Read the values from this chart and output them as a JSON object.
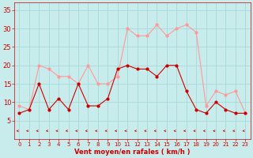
{
  "x": [
    0,
    1,
    2,
    3,
    4,
    5,
    6,
    7,
    8,
    9,
    10,
    11,
    12,
    13,
    14,
    15,
    16,
    17,
    18,
    19,
    20,
    21,
    22,
    23
  ],
  "wind_avg": [
    7,
    8,
    15,
    8,
    11,
    8,
    15,
    9,
    9,
    11,
    19,
    20,
    19,
    19,
    17,
    20,
    20,
    13,
    8,
    7,
    10,
    8,
    7,
    7
  ],
  "wind_gust": [
    9,
    8,
    20,
    19,
    17,
    17,
    15,
    20,
    15,
    15,
    17,
    30,
    28,
    28,
    31,
    28,
    30,
    31,
    29,
    9,
    13,
    12,
    13,
    7
  ],
  "bg_color": "#c8ecec",
  "grid_color": "#a8d8d8",
  "line_avg_color": "#cc0000",
  "line_gust_color": "#ff9999",
  "xlabel": "Vent moyen/en rafales ( km/h )",
  "xlabel_color": "#cc0000",
  "tick_color": "#cc0000",
  "ylim": [
    0,
    37
  ],
  "yticks": [
    5,
    10,
    15,
    20,
    25,
    30,
    35
  ],
  "xticks": [
    0,
    1,
    2,
    3,
    4,
    5,
    6,
    7,
    8,
    9,
    10,
    11,
    12,
    13,
    14,
    15,
    16,
    17,
    18,
    19,
    20,
    21,
    22,
    23
  ],
  "xticklabels": [
    "0",
    "1",
    "2",
    "3",
    "4",
    "5",
    "6",
    "7",
    "8",
    "9",
    "10",
    "11",
    "12",
    "13",
    "14",
    "15",
    "16",
    "17",
    "18",
    "19",
    "20",
    "21",
    "22",
    "23"
  ]
}
